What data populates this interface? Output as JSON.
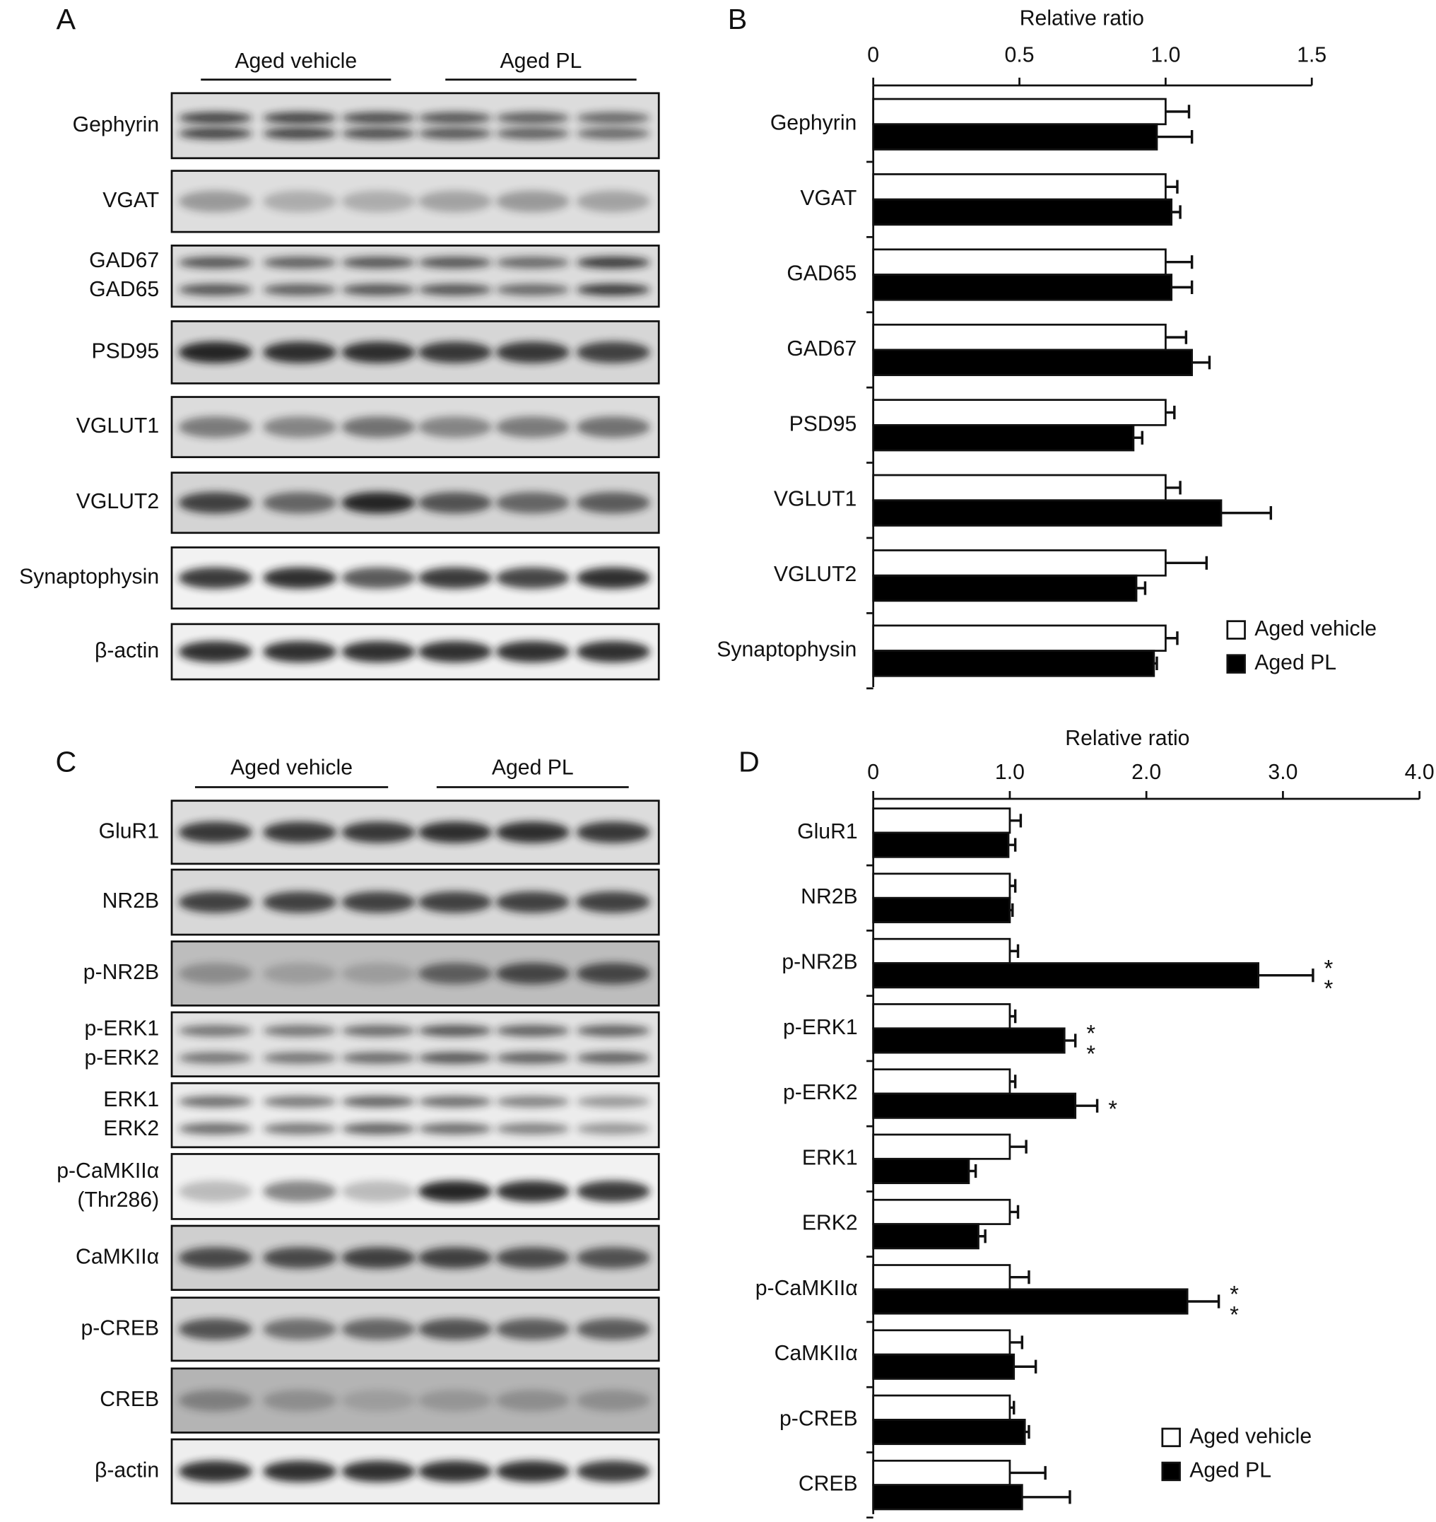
{
  "blots": [
    {
      "panel": "A",
      "groups": [
        "Aged vehicle",
        "Aged PL"
      ],
      "rows": [
        [
          "Gephyrin"
        ],
        [
          "VGAT"
        ],
        [
          "GAD67",
          "GAD65"
        ],
        [
          "PSD95"
        ],
        [
          "VGLUT1"
        ],
        [
          "VGLUT2"
        ],
        [
          "Synaptophysin"
        ],
        [
          "β-actin"
        ]
      ]
    },
    {
      "panel": "C",
      "groups": [
        "Aged vehicle",
        "Aged PL"
      ],
      "rows": [
        [
          "GluR1"
        ],
        [
          "NR2B"
        ],
        [
          "p-NR2B"
        ],
        [
          "p-ERK1",
          "p-ERK2"
        ],
        [
          "ERK1",
          "ERK2"
        ],
        [
          "p-CaMKIIα",
          "(Thr286)"
        ],
        [
          "CaMKIIα"
        ],
        [
          "p-CREB"
        ],
        [
          "CREB"
        ],
        [
          "β-actin"
        ]
      ]
    }
  ],
  "chart_data": [
    {
      "type": "bar",
      "orientation": "horizontal",
      "panel": "B",
      "xlabel": "Relative ratio",
      "categories": [
        "Gephyrin",
        "VGAT",
        "GAD65",
        "GAD67",
        "PSD95",
        "VGLUT1",
        "VGLUT2",
        "Synaptophysin"
      ],
      "series": [
        {
          "name": "Aged vehicle",
          "color": "#ffffff",
          "values": [
            1.0,
            1.0,
            1.0,
            1.0,
            1.0,
            1.0,
            1.0,
            1.0
          ],
          "errors": [
            0.08,
            0.04,
            0.09,
            0.07,
            0.03,
            0.05,
            0.14,
            0.04
          ]
        },
        {
          "name": "Aged PL",
          "color": "#000000",
          "values": [
            0.97,
            1.02,
            1.02,
            1.09,
            0.89,
            1.19,
            0.9,
            0.96
          ],
          "errors": [
            0.12,
            0.03,
            0.07,
            0.06,
            0.03,
            0.17,
            0.03,
            0.01
          ]
        }
      ],
      "xlim": [
        0,
        1.5
      ],
      "xticks": [
        0,
        0.5,
        {
          "value": 1,
          "label": "1.0"
        },
        1.5
      ],
      "legend": "lower right"
    },
    {
      "type": "bar",
      "orientation": "horizontal",
      "panel": "D",
      "xlabel": "Relative ratio",
      "categories": [
        "GluR1",
        "NR2B",
        "p-NR2B",
        "p-ERK1",
        "p-ERK2",
        "ERK1",
        "ERK2",
        "p-CaMKIIα",
        "CaMKIIα",
        "p-CREB",
        "CREB"
      ],
      "series": [
        {
          "name": "Aged vehicle",
          "color": "#ffffff",
          "values": [
            1.0,
            1.0,
            1.0,
            1.0,
            1.0,
            1.0,
            1.0,
            1.0,
            1.0,
            1.0,
            1.0
          ],
          "errors": [
            0.08,
            0.04,
            0.06,
            0.04,
            0.04,
            0.12,
            0.06,
            0.14,
            0.09,
            0.03,
            0.26
          ]
        },
        {
          "name": "Aged PL",
          "color": "#000000",
          "values": [
            0.99,
            1.0,
            2.82,
            1.4,
            1.48,
            0.7,
            0.77,
            2.3,
            1.03,
            1.11,
            1.09
          ],
          "errors": [
            0.05,
            0.02,
            0.4,
            0.08,
            0.16,
            0.05,
            0.05,
            0.23,
            0.16,
            0.03,
            0.35
          ],
          "significance": [
            null,
            null,
            "**",
            "**",
            "*",
            null,
            null,
            "**",
            null,
            null,
            null
          ]
        }
      ],
      "xlim": [
        0,
        4
      ],
      "xticks": [
        0,
        {
          "value": 1,
          "label": "1.0"
        },
        {
          "value": 2,
          "label": "2.0"
        },
        {
          "value": 3,
          "label": "3.0"
        },
        {
          "value": 4,
          "label": "4.0"
        }
      ],
      "legend": "lower right"
    }
  ]
}
